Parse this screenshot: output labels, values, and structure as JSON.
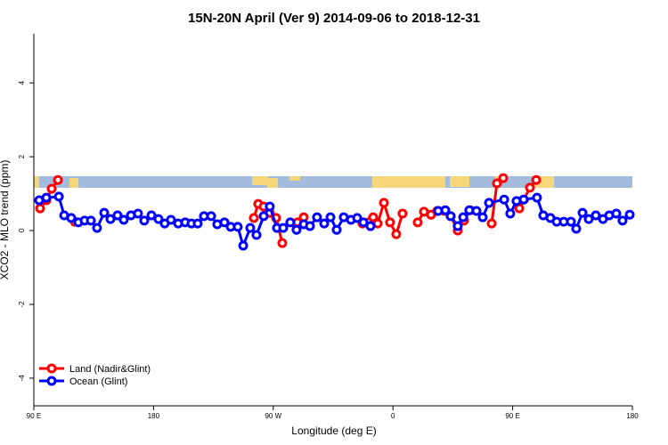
{
  "chart_data": {
    "type": "line",
    "title": "15N-20N April (Ver 9)   2014-09-06 to 2018-12-31",
    "xlabel": "Longitude (deg E)",
    "ylabel": "XCO2 - MLO trend (ppm)",
    "xlim": [
      90,
      540
    ],
    "ylim": [
      -4.75,
      5.33
    ],
    "xticks": [
      {
        "value": 90,
        "label": "90 E"
      },
      180,
      {
        "value": 270,
        "label": "90 W"
      },
      {
        "value": 360,
        "label": "0"
      },
      {
        "value": 450,
        "label": "90 E"
      },
      {
        "value": 540,
        "label": "180"
      }
    ],
    "yticks": [
      -4,
      -2,
      0,
      2,
      4
    ],
    "legend": "bottomleft",
    "series": [
      {
        "name": "Land (Nadir&Glint)",
        "color": "#ff0000",
        "x": [
          94.7,
          99.4,
          103.4,
          108.1,
          null,
          120.8,
          null,
          255.4,
          258.7,
          262.8,
          267.4,
          272.1,
          276.8,
          null,
          288.2,
          292.9,
          null,
          337.1,
          341.8,
          345.1,
          348.5,
          353.2,
          357.8,
          362.5,
          367.2,
          null,
          378.6,
          383.3,
          388.6,
          393.3,
          398.7,
          403.4,
          408.7,
          413.4,
          418.1,
          null,
          434.2,
          438.2,
          442.9,
          null,
          455.0,
          458.3,
          463.0,
          467.7
        ],
        "values": [
          0.6,
          0.82,
          1.13,
          1.37,
          null,
          0.24,
          null,
          0.34,
          0.72,
          0.65,
          0.48,
          0.34,
          -0.34,
          null,
          0.22,
          0.36,
          null,
          0.19,
          0.22,
          0.36,
          0.19,
          0.75,
          0.22,
          -0.1,
          0.46,
          null,
          0.22,
          0.51,
          0.43,
          0.53,
          0.53,
          0.39,
          0.0,
          0.27,
          0.55,
          null,
          0.19,
          1.28,
          1.42,
          null,
          0.6,
          0.84,
          1.16,
          1.37
        ]
      },
      {
        "name": "Ocean (Glint)",
        "color": "#0000ff",
        "x": [
          94.0,
          99.4,
          108.8,
          112.8,
          118.1,
          123.5,
          128.2,
          132.9,
          137.5,
          142.9,
          147.6,
          152.9,
          157.6,
          163.0,
          168.3,
          173.0,
          178.4,
          183.7,
          188.4,
          193.1,
          198.5,
          203.8,
          208.5,
          213.2,
          217.9,
          223.3,
          227.9,
          233.3,
          238.0,
          243.3,
          247.4,
          252.7,
          257.4,
          262.8,
          267.4,
          272.8,
          277.5,
          282.8,
          287.5,
          292.9,
          297.6,
          302.9,
          308.3,
          313.0,
          317.7,
          323.0,
          328.4,
          333.1,
          337.8,
          343.1,
          null,
          394.0,
          399.4,
          403.4,
          408.7,
          412.8,
          417.4,
          422.8,
          427.5,
          432.2,
          443.6,
          448.2,
          452.9,
          458.3,
          468.3,
          473.0,
          478.4,
          483.1,
          488.4,
          493.8,
          497.8,
          502.5,
          507.2,
          512.5,
          517.9,
          522.6,
          527.9,
          532.6,
          538.0
        ],
        "values": [
          0.82,
          0.89,
          0.92,
          0.41,
          0.34,
          0.22,
          0.27,
          0.27,
          0.07,
          0.48,
          0.31,
          0.41,
          0.29,
          0.41,
          0.46,
          0.27,
          0.41,
          0.31,
          0.19,
          0.29,
          0.19,
          0.22,
          0.19,
          0.19,
          0.39,
          0.39,
          0.17,
          0.22,
          0.1,
          0.1,
          -0.41,
          0.07,
          -0.12,
          0.39,
          0.65,
          0.07,
          0.07,
          0.22,
          0.02,
          0.17,
          0.12,
          0.36,
          0.19,
          0.36,
          0.02,
          0.36,
          0.29,
          0.34,
          0.22,
          0.12,
          null,
          0.53,
          0.55,
          0.39,
          0.12,
          0.36,
          0.55,
          0.53,
          0.36,
          0.75,
          0.84,
          0.46,
          0.8,
          0.84,
          0.89,
          0.41,
          0.34,
          0.24,
          0.24,
          0.24,
          0.05,
          0.48,
          0.31,
          0.41,
          0.31,
          0.41,
          0.46,
          0.27,
          0.43
        ]
      }
    ]
  }
}
